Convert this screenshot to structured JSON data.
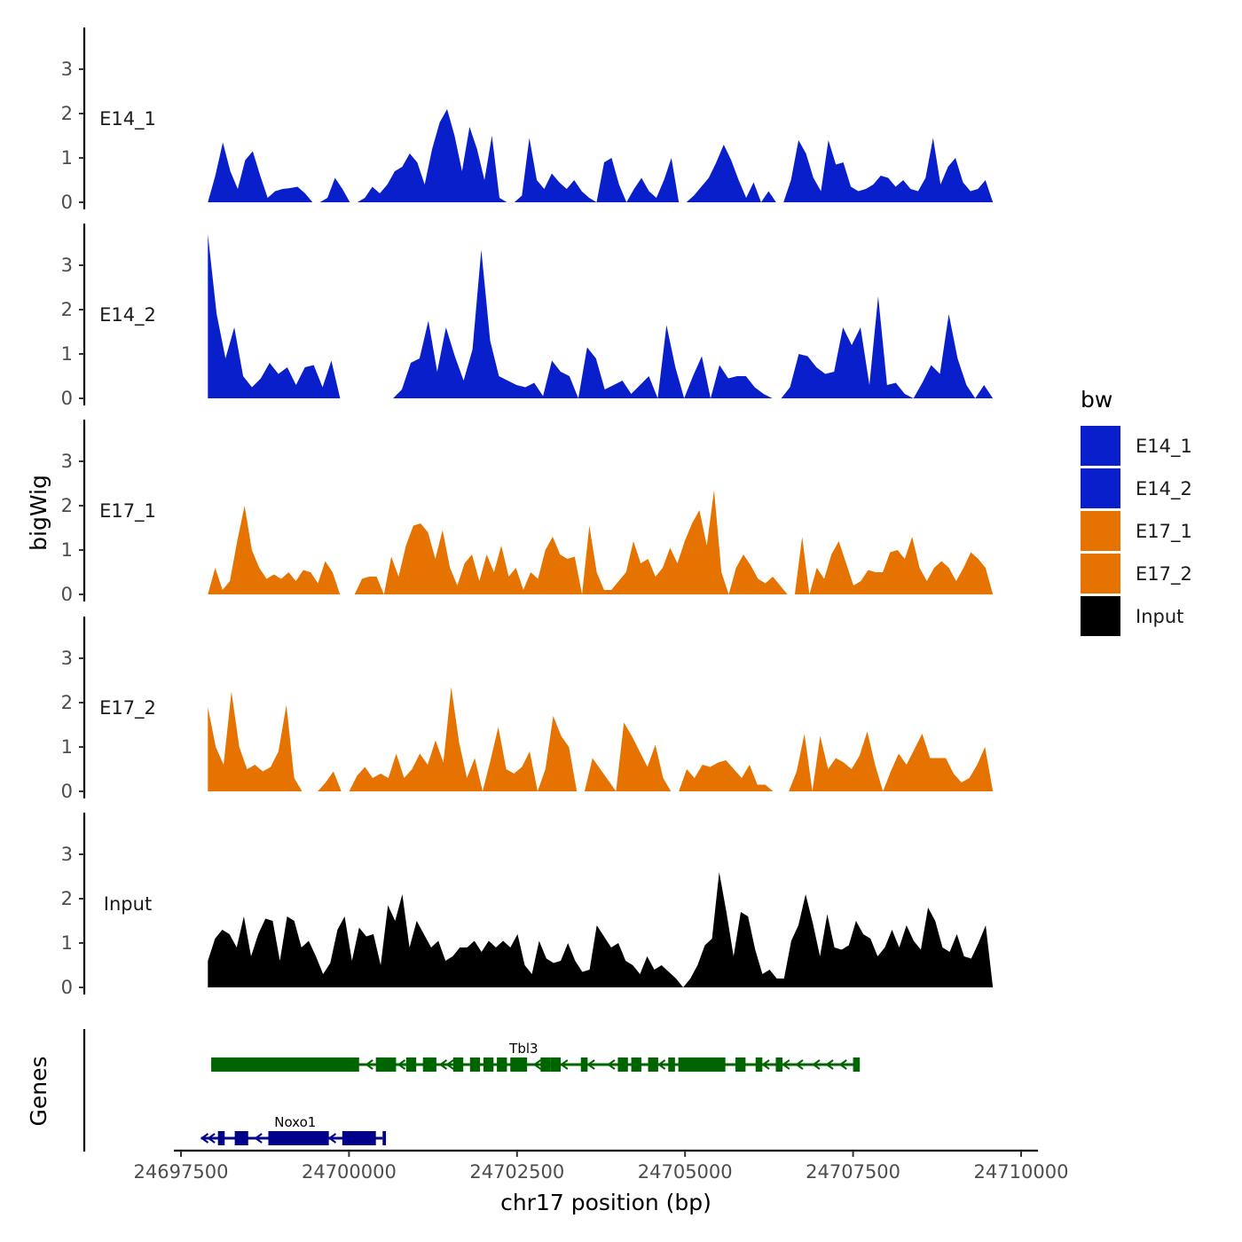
{
  "chart_data": {
    "type": "area",
    "ylabel": "bigWig",
    "xlabel": "chr17 position (bp)",
    "genes_label": "Genes",
    "x_range": [
      24697400,
      24709900
    ],
    "x_ticks": [
      24697500,
      24700000,
      24702500,
      24705000,
      24707500,
      24710000
    ],
    "x_tick_labels": [
      "24697500",
      "24700000",
      "24702500",
      "24705000",
      "24707500",
      "24710000"
    ],
    "y_range": [
      0,
      4
    ],
    "y_ticks": [
      0,
      1,
      2,
      3
    ],
    "y_tick_labels": [
      "0",
      "1",
      "2",
      "3"
    ],
    "track_x_start": 24697900,
    "track_x_end": 24709580,
    "tracks": [
      {
        "name": "E14_1",
        "color": "#0a1fcc",
        "values": [
          0.0,
          0.6,
          1.35,
          0.7,
          0.3,
          0.95,
          1.15,
          0.6,
          0.1,
          0.25,
          0.3,
          0.32,
          0.35,
          0.2,
          0.0,
          0.0,
          0.1,
          0.55,
          0.3,
          0.0,
          0.0,
          0.1,
          0.35,
          0.2,
          0.4,
          0.7,
          0.8,
          1.1,
          0.9,
          0.4,
          1.2,
          1.8,
          2.1,
          1.5,
          0.7,
          1.7,
          1.2,
          0.5,
          1.5,
          0.1,
          0.0,
          0.0,
          0.15,
          1.45,
          0.5,
          0.3,
          0.65,
          0.45,
          0.3,
          0.5,
          0.25,
          0.1,
          0.0,
          0.9,
          1.0,
          0.4,
          0.0,
          0.3,
          0.55,
          0.25,
          0.1,
          0.5,
          1.0,
          0.0,
          0.0,
          0.15,
          0.35,
          0.55,
          0.9,
          1.3,
          0.95,
          0.5,
          0.1,
          0.45,
          0.0,
          0.25,
          0.0,
          0.0,
          0.5,
          1.4,
          1.1,
          0.55,
          0.25,
          1.4,
          0.85,
          0.9,
          0.35,
          0.25,
          0.3,
          0.4,
          0.6,
          0.55,
          0.35,
          0.5,
          0.3,
          0.25,
          0.55,
          1.45,
          0.4,
          0.8,
          1.0,
          0.45,
          0.25,
          0.3,
          0.5,
          0.0
        ],
        "strip_label": "E14_1"
      },
      {
        "name": "E14_2",
        "color": "#0a1fcc",
        "values": [
          3.7,
          1.9,
          0.9,
          1.6,
          0.5,
          0.25,
          0.45,
          0.8,
          0.55,
          0.7,
          0.3,
          0.7,
          0.75,
          0.25,
          0.85,
          0.0,
          0.0,
          0.0,
          0.0,
          0.0,
          0.0,
          0.0,
          0.2,
          0.8,
          0.9,
          1.75,
          0.6,
          1.6,
          0.95,
          0.4,
          1.1,
          3.35,
          1.3,
          0.5,
          0.4,
          0.3,
          0.25,
          0.35,
          0.05,
          0.85,
          0.6,
          0.5,
          0.0,
          1.15,
          0.9,
          0.2,
          0.3,
          0.4,
          0.1,
          0.3,
          0.5,
          0.0,
          1.65,
          0.7,
          0.0,
          0.5,
          0.95,
          0.0,
          0.75,
          0.45,
          0.5,
          0.5,
          0.25,
          0.1,
          0.0,
          0.0,
          0.25,
          1.0,
          0.95,
          0.7,
          0.55,
          0.6,
          1.6,
          1.2,
          1.6,
          0.3,
          2.3,
          0.3,
          0.35,
          0.1,
          0.0,
          0.35,
          0.75,
          0.55,
          1.9,
          0.9,
          0.3,
          0.0,
          0.3,
          0.0
        ],
        "strip_label": "E14_2"
      },
      {
        "name": "E17_1",
        "color": "#e67300",
        "values": [
          0.0,
          0.6,
          0.1,
          0.3,
          1.2,
          2.0,
          1.0,
          0.6,
          0.35,
          0.45,
          0.35,
          0.5,
          0.3,
          0.55,
          0.5,
          0.25,
          0.75,
          0.5,
          0.0,
          0.0,
          0.0,
          0.35,
          0.4,
          0.4,
          0.0,
          0.85,
          0.4,
          1.1,
          1.55,
          1.6,
          1.4,
          0.8,
          1.45,
          0.6,
          0.2,
          0.7,
          0.9,
          0.3,
          0.9,
          0.5,
          1.1,
          0.4,
          0.6,
          0.1,
          0.5,
          0.35,
          1.0,
          1.3,
          0.9,
          0.8,
          0.85,
          0.0,
          1.55,
          0.5,
          0.1,
          0.1,
          0.3,
          0.5,
          1.2,
          0.7,
          0.8,
          0.4,
          0.6,
          1.05,
          0.7,
          1.2,
          1.6,
          1.9,
          1.1,
          2.35,
          0.5,
          0.0,
          0.6,
          0.9,
          0.65,
          0.35,
          0.25,
          0.4,
          0.2,
          0.0,
          0.0,
          1.3,
          0.0,
          0.6,
          0.35,
          0.9,
          1.2,
          0.7,
          0.2,
          0.3,
          0.55,
          0.5,
          0.5,
          0.95,
          1.0,
          0.8,
          1.3,
          0.6,
          0.3,
          0.6,
          0.75,
          0.6,
          0.3,
          0.6,
          0.95,
          0.8,
          0.6,
          0.0
        ],
        "strip_label": "E17_1"
      },
      {
        "name": "E17_2",
        "color": "#e67300",
        "values": [
          1.9,
          1.0,
          0.6,
          2.25,
          1.0,
          0.5,
          0.6,
          0.45,
          0.55,
          0.9,
          1.95,
          0.3,
          0.0,
          0.0,
          0.0,
          0.2,
          0.45,
          0.0,
          0.0,
          0.35,
          0.55,
          0.3,
          0.4,
          0.3,
          0.85,
          0.3,
          0.5,
          0.85,
          0.6,
          1.15,
          0.65,
          2.35,
          1.1,
          0.3,
          0.75,
          0.0,
          0.7,
          1.45,
          0.5,
          0.4,
          0.55,
          0.9,
          0.0,
          0.5,
          1.7,
          1.25,
          1.0,
          0.0,
          0.0,
          0.75,
          0.5,
          0.25,
          0.0,
          1.55,
          1.25,
          0.9,
          0.55,
          1.05,
          0.3,
          0.0,
          0.0,
          0.5,
          0.3,
          0.6,
          0.55,
          0.65,
          0.7,
          0.5,
          0.3,
          0.6,
          0.15,
          0.15,
          0.0,
          0.0,
          0.0,
          0.45,
          1.3,
          0.0,
          1.25,
          0.5,
          0.75,
          0.65,
          0.5,
          0.8,
          1.35,
          0.6,
          0.0,
          0.45,
          0.85,
          0.6,
          0.95,
          1.3,
          0.75,
          0.75,
          0.75,
          0.4,
          0.2,
          0.3,
          0.6,
          1.0,
          0.0
        ],
        "strip_label": "E17_2"
      },
      {
        "name": "Input",
        "color": "#000000",
        "values": [
          0.6,
          1.1,
          1.3,
          1.2,
          0.9,
          1.6,
          0.7,
          1.2,
          1.55,
          1.5,
          0.6,
          1.6,
          1.5,
          0.9,
          1.05,
          0.7,
          0.3,
          0.55,
          1.3,
          1.6,
          0.6,
          1.35,
          1.15,
          1.2,
          0.5,
          1.85,
          1.5,
          2.1,
          0.9,
          1.5,
          1.2,
          0.9,
          1.05,
          0.6,
          0.7,
          0.9,
          0.9,
          1.05,
          0.8,
          1.05,
          0.9,
          1.05,
          0.9,
          1.2,
          0.5,
          0.3,
          1.05,
          0.65,
          0.55,
          0.6,
          1.0,
          0.6,
          0.35,
          0.4,
          1.4,
          1.15,
          0.9,
          1.0,
          0.6,
          0.5,
          0.3,
          0.7,
          0.4,
          0.5,
          0.35,
          0.2,
          0.0,
          0.2,
          0.5,
          0.95,
          1.1,
          2.6,
          1.7,
          0.7,
          1.7,
          1.6,
          0.85,
          0.3,
          0.4,
          0.2,
          0.2,
          1.05,
          1.4,
          2.1,
          1.45,
          0.7,
          1.65,
          0.9,
          0.85,
          0.95,
          1.5,
          1.2,
          1.1,
          0.7,
          0.9,
          1.3,
          0.9,
          1.4,
          1.05,
          0.85,
          1.8,
          1.5,
          0.9,
          0.8,
          1.2,
          0.7,
          0.65,
          1.0,
          1.4,
          0.0
        ],
        "strip_label": "Input"
      }
    ],
    "genes": [
      {
        "name": "Tbl3",
        "color": "#006400",
        "start": 24697950,
        "end": 24707600,
        "label_pos": 24702600,
        "exons": [
          [
            24697950,
            24700150
          ],
          [
            24700400,
            24700700
          ],
          [
            24700850,
            24701000
          ],
          [
            24701100,
            24701300
          ],
          [
            24701550,
            24701700
          ],
          [
            24701800,
            24701950
          ],
          [
            24702000,
            24702150
          ],
          [
            24702200,
            24702350
          ],
          [
            24702400,
            24702650
          ],
          [
            24702850,
            24703000
          ],
          [
            24703000,
            24703150
          ],
          [
            24703450,
            24703550
          ],
          [
            24704000,
            24704150
          ],
          [
            24704200,
            24704350
          ],
          [
            24704450,
            24704600
          ],
          [
            24704750,
            24704850
          ],
          [
            24704900,
            24705600
          ],
          [
            24705750,
            24705900
          ],
          [
            24706050,
            24706150
          ],
          [
            24706350,
            24706450
          ],
          [
            24707500,
            24707600
          ]
        ],
        "arrows": [
          24700300,
          24700500,
          24700780,
          24701400,
          24701500,
          24702800,
          24703200,
          24703600,
          24703900,
          24704650,
          24706200,
          24706500,
          24706700,
          24706950,
          24707150,
          24707350
        ]
      },
      {
        "name": "Noxo1",
        "color": "#00008b",
        "start": 24697800,
        "end": 24700500,
        "label_pos": 24699200,
        "exons": [
          [
            24698050,
            24698150
          ],
          [
            24698300,
            24698500
          ],
          [
            24698800,
            24699700
          ],
          [
            24699900,
            24700400
          ],
          [
            24700500,
            24700550
          ]
        ],
        "arrows": [
          24697850,
          24697950,
          24698650,
          24699750
        ]
      }
    ],
    "legend": {
      "title": "bw",
      "position": "right",
      "entries": [
        {
          "label": "E14_1",
          "color": "#0a1fcc"
        },
        {
          "label": "E14_2",
          "color": "#0a1fcc"
        },
        {
          "label": "E17_1",
          "color": "#e67300"
        },
        {
          "label": "E17_2",
          "color": "#e67300"
        },
        {
          "label": "Input",
          "color": "#000000"
        }
      ]
    }
  }
}
